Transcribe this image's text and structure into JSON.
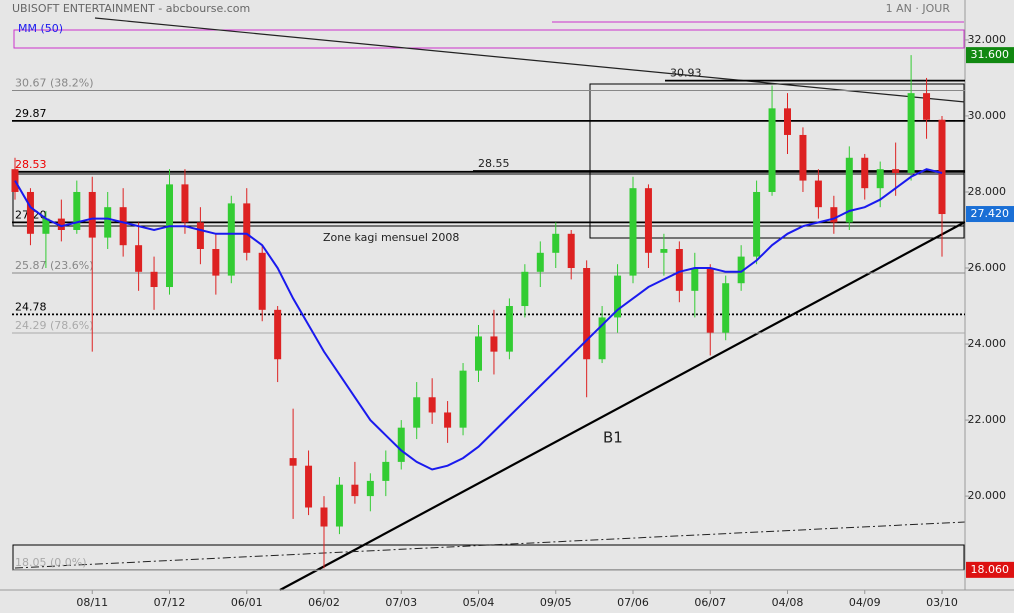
{
  "chart_data": {
    "type": "candlestick",
    "title": "UBISOFT ENTERTAINMENT - abcbourse.com",
    "period": "1 AN · JOUR",
    "categories": [
      null,
      null,
      null,
      null,
      null,
      "08/11",
      null,
      null,
      null,
      null,
      "07/12",
      null,
      null,
      null,
      null,
      "06/01",
      null,
      null,
      null,
      null,
      "06/02",
      null,
      null,
      null,
      null,
      "07/03",
      null,
      null,
      null,
      null,
      "05/04",
      null,
      null,
      null,
      null,
      "09/05",
      null,
      null,
      null,
      null,
      "07/06",
      null,
      null,
      null,
      null,
      "06/07",
      null,
      null,
      null,
      null,
      "04/08",
      null,
      null,
      null,
      null,
      "04/09",
      null,
      null,
      null,
      null,
      "03/10"
    ],
    "open": [
      28.6,
      28.0,
      26.9,
      27.3,
      27.0,
      28.0,
      26.8,
      27.6,
      26.6,
      25.9,
      25.5,
      28.2,
      27.2,
      26.5,
      25.8,
      27.7,
      26.4,
      24.9,
      21.0,
      20.8,
      19.7,
      19.2,
      20.3,
      20.0,
      20.4,
      20.9,
      21.8,
      22.6,
      22.2,
      21.8,
      23.3,
      24.2,
      23.8,
      25.0,
      25.9,
      26.4,
      26.9,
      26.0,
      23.6,
      24.7,
      25.8,
      28.1,
      26.4,
      26.5,
      25.4,
      26.0,
      24.3,
      25.6,
      26.3,
      28.0,
      30.2,
      29.5,
      28.3,
      27.6,
      27.2,
      28.9,
      28.1,
      28.6,
      28.5,
      30.6,
      29.9
    ],
    "high": [
      28.9,
      28.1,
      27.5,
      27.8,
      28.3,
      28.4,
      28.0,
      28.1,
      27.2,
      26.3,
      28.6,
      28.6,
      27.6,
      26.9,
      27.9,
      28.1,
      26.6,
      25.0,
      22.3,
      21.2,
      20.0,
      20.5,
      20.9,
      20.6,
      21.2,
      22.0,
      23.0,
      23.1,
      22.5,
      23.5,
      24.5,
      24.9,
      25.2,
      26.1,
      26.7,
      27.2,
      27.0,
      26.2,
      25.0,
      26.1,
      28.4,
      28.2,
      26.9,
      26.7,
      26.4,
      26.1,
      25.8,
      26.6,
      28.3,
      30.8,
      30.6,
      29.7,
      28.6,
      27.9,
      29.2,
      29.0,
      28.8,
      29.3,
      31.6,
      31.0,
      30.0
    ],
    "low": [
      27.8,
      26.6,
      26.0,
      26.7,
      26.9,
      23.8,
      26.5,
      26.3,
      25.4,
      24.9,
      25.3,
      26.9,
      26.1,
      25.3,
      25.6,
      26.2,
      24.6,
      23.0,
      19.4,
      19.5,
      18.1,
      19.0,
      19.8,
      19.6,
      20.0,
      20.7,
      21.5,
      21.9,
      21.4,
      21.6,
      23.0,
      23.2,
      23.6,
      24.7,
      25.5,
      26.0,
      25.7,
      22.6,
      23.5,
      24.3,
      25.6,
      26.0,
      25.8,
      25.1,
      24.7,
      23.7,
      24.1,
      25.4,
      26.1,
      27.9,
      29.0,
      28.0,
      27.3,
      26.9,
      27.0,
      27.8,
      27.6,
      27.9,
      28.3,
      29.4,
      26.3
    ],
    "close": [
      28.0,
      26.9,
      27.3,
      27.0,
      28.0,
      26.8,
      27.6,
      26.6,
      25.9,
      25.5,
      28.2,
      27.2,
      26.5,
      25.8,
      27.7,
      26.4,
      24.9,
      23.6,
      20.8,
      19.7,
      19.2,
      20.3,
      20.0,
      20.4,
      20.9,
      21.8,
      22.6,
      22.2,
      21.8,
      23.3,
      24.2,
      23.8,
      25.0,
      25.9,
      26.4,
      26.9,
      26.0,
      23.6,
      24.7,
      25.8,
      28.1,
      26.4,
      26.5,
      25.4,
      26.0,
      24.3,
      25.6,
      26.3,
      28.0,
      30.2,
      29.5,
      28.3,
      27.6,
      27.2,
      28.9,
      28.1,
      28.6,
      28.5,
      30.6,
      29.9,
      27.42
    ],
    "up_color": "#33cc33",
    "down_color": "#dd2222",
    "series": [
      {
        "name": "MM (50)",
        "color": "#1a1aee",
        "values": [
          28.3,
          27.6,
          27.3,
          27.1,
          27.2,
          27.3,
          27.3,
          27.2,
          27.1,
          27.0,
          27.1,
          27.1,
          27.0,
          26.9,
          26.9,
          26.9,
          26.6,
          26.0,
          25.2,
          24.5,
          23.8,
          23.2,
          22.6,
          22.0,
          21.6,
          21.2,
          20.9,
          20.7,
          20.8,
          21.0,
          21.3,
          21.7,
          22.1,
          22.5,
          22.9,
          23.3,
          23.7,
          24.1,
          24.5,
          24.9,
          25.2,
          25.5,
          25.7,
          25.9,
          26.0,
          26.0,
          25.9,
          25.9,
          26.2,
          26.6,
          26.9,
          27.1,
          27.2,
          27.3,
          27.5,
          27.6,
          27.8,
          28.1,
          28.4,
          28.6,
          28.5
        ]
      }
    ],
    "ylim": [
      17.53,
      33.05
    ],
    "yticks": [
      {
        "value": 20,
        "label": "20.000"
      },
      {
        "value": 22,
        "label": "22.000"
      },
      {
        "value": 24,
        "label": "24.000"
      },
      {
        "value": 26,
        "label": "26.000"
      },
      {
        "value": 28,
        "label": "28.000"
      },
      {
        "value": 30,
        "label": "30.000"
      },
      {
        "value": 32,
        "label": "32.000"
      }
    ],
    "levels": [
      {
        "value": 30.67,
        "label": "30.67  (38.2%)",
        "color": "#888888"
      },
      {
        "value": 29.87,
        "color": "#000000"
      },
      {
        "value": 28.53,
        "color": "#ee0000"
      },
      {
        "value": 27.2,
        "label": "27.20",
        "color": "#000000"
      },
      {
        "value": 25.87,
        "label": "25.87  (23.6%)",
        "color": "#888888"
      },
      {
        "value": 24.78,
        "color": "#000000"
      },
      {
        "value": 24.29,
        "label": "24.29  (78.6%)",
        "color": "#aaaaaa"
      },
      {
        "value": 18.05,
        "label": "18.05  (0.0%)",
        "color": "#aaaaaa"
      }
    ],
    "box_levels": [
      30.93,
      28.55
    ],
    "price_tags": [
      {
        "value": 31.6,
        "label": "31.600",
        "color": "#118811"
      },
      {
        "value": 27.42,
        "label": "27.420",
        "color": "#1a6fd6"
      },
      {
        "value": 18.06,
        "label": "18.060",
        "color": "#dd1111"
      }
    ],
    "annotations": [
      "Zone kagi mensuel 2008",
      "B1"
    ]
  }
}
